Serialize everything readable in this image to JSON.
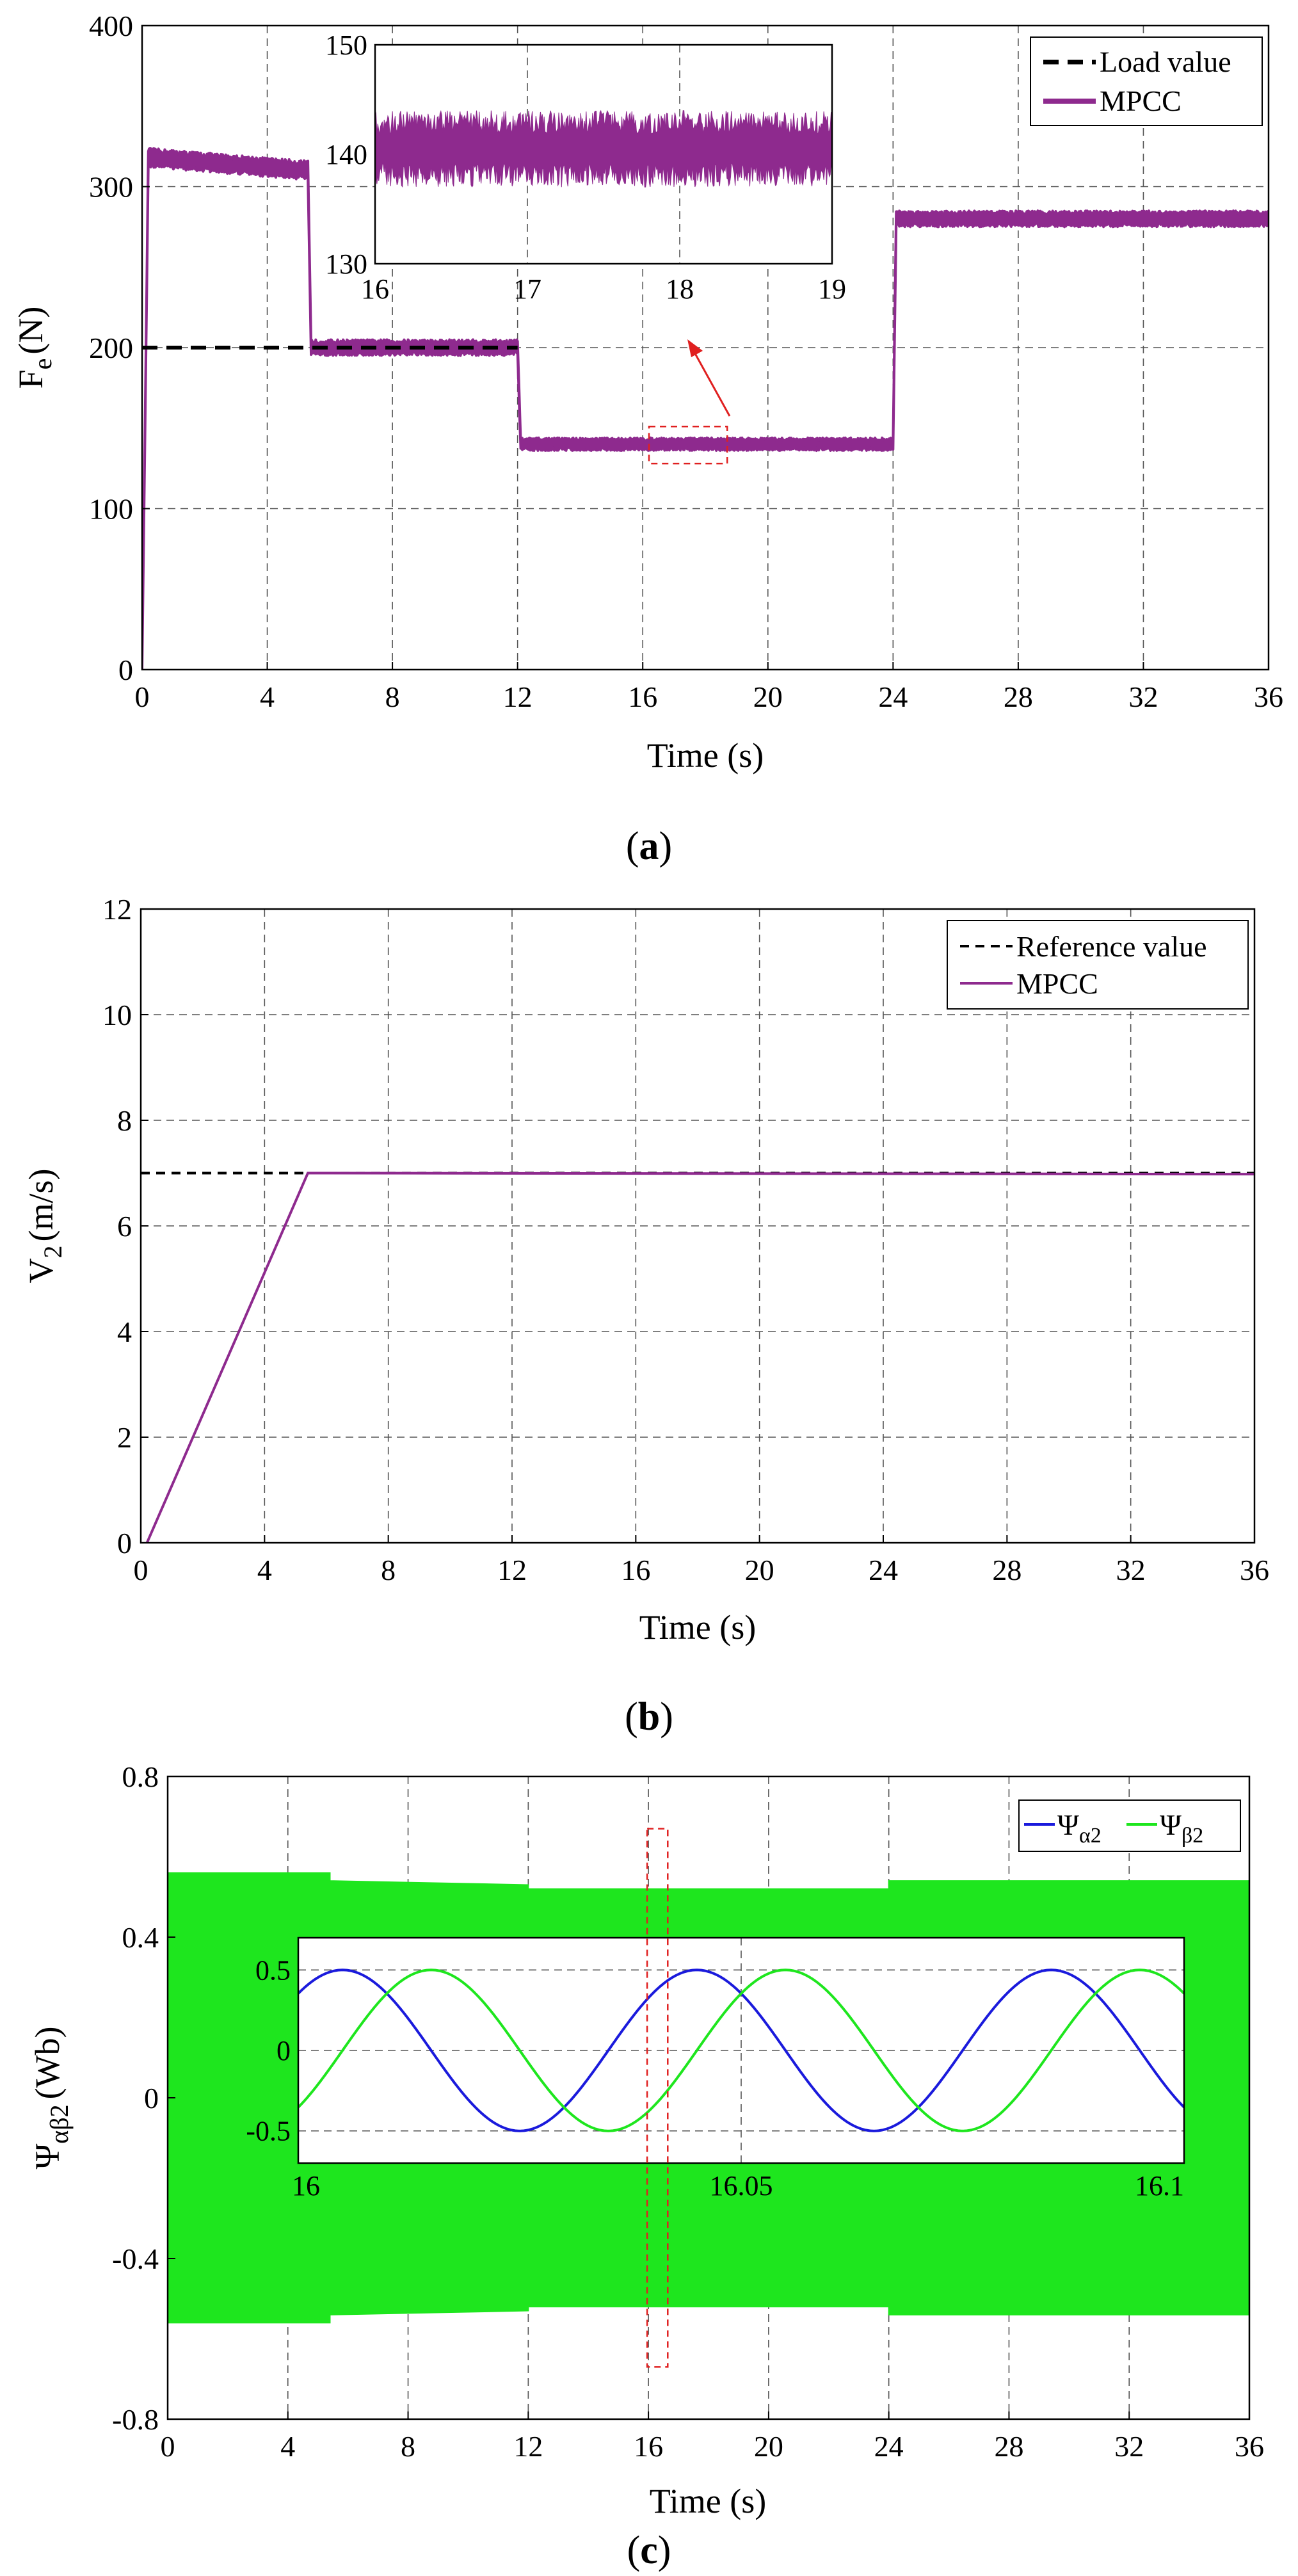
{
  "chart_data": [
    {
      "panel": "a",
      "type": "line",
      "caption": "(a)",
      "xlabel": "Time (s)",
      "ylabel": "F",
      "ylabel_sub": "e",
      "ylabel_unit": "(N)",
      "xlim": [
        0,
        36
      ],
      "ylim": [
        0,
        400
      ],
      "xticks": [
        "0",
        "4",
        "8",
        "12",
        "16",
        "20",
        "24",
        "28",
        "32",
        "36"
      ],
      "yticks": [
        "0",
        "100",
        "200",
        "300",
        "400"
      ],
      "grid": true,
      "legend_position": "top-right",
      "series": [
        {
          "name": "Load value",
          "color": "#000000",
          "style": "dashed",
          "x": [
            0,
            5.4,
            12,
            12,
            24,
            24,
            36
          ],
          "y": [
            200,
            200,
            200,
            140,
            140,
            280,
            280
          ]
        },
        {
          "name": "MPCC",
          "color": "#8e2a8e",
          "style": "solid",
          "x": [
            0,
            0.2,
            5.3,
            5.4,
            12,
            12.1,
            24,
            24.1,
            36
          ],
          "y": [
            0,
            318,
            310,
            200,
            200,
            140,
            140,
            280,
            280
          ],
          "ripple": [
            0,
            6,
            6,
            5,
            5,
            4,
            4,
            5,
            5
          ]
        }
      ],
      "inset": {
        "xlim": [
          16,
          19
        ],
        "ylim": [
          130,
          150
        ],
        "xticks": [
          "16",
          "17",
          "18",
          "19"
        ],
        "yticks": [
          "130",
          "140",
          "150"
        ],
        "level": 140,
        "band": [
          137,
          144
        ]
      },
      "zoom_box": {
        "x": [
          16.2,
          18.7
        ],
        "y": [
          128,
          151
        ]
      }
    },
    {
      "panel": "b",
      "type": "line",
      "caption": "(b)",
      "xlabel": "Time (s)",
      "ylabel": "V",
      "ylabel_sub": "2",
      "ylabel_unit": "(m/s)",
      "xlim": [
        0,
        36
      ],
      "ylim": [
        0,
        12
      ],
      "xticks": [
        "0",
        "4",
        "8",
        "12",
        "16",
        "20",
        "24",
        "28",
        "32",
        "36"
      ],
      "yticks": [
        "0",
        "2",
        "4",
        "6",
        "8",
        "10",
        "12"
      ],
      "grid": true,
      "legend_position": "top-right",
      "series": [
        {
          "name": "Reference value",
          "color": "#000000",
          "style": "dashed",
          "x": [
            0,
            36
          ],
          "y": [
            7,
            7
          ]
        },
        {
          "name": "MPCC",
          "color": "#8e2a8e",
          "style": "solid",
          "x": [
            0.2,
            5.4,
            36
          ],
          "y": [
            0,
            7,
            6.98
          ]
        }
      ]
    },
    {
      "panel": "c",
      "type": "line",
      "caption": "(c)",
      "xlabel": "Time (s)",
      "ylabel": "Ψ",
      "ylabel_sub": "αβ2",
      "ylabel_unit": "(Wb)",
      "xlim": [
        0,
        36
      ],
      "ylim": [
        -0.8,
        0.8
      ],
      "xticks": [
        "0",
        "4",
        "8",
        "12",
        "16",
        "20",
        "24",
        "28",
        "32",
        "36"
      ],
      "yticks": [
        "-0.8",
        "-0.4",
        "0",
        "0.4",
        "0.8"
      ],
      "grid": true,
      "legend_position": "top-right",
      "series": [
        {
          "name": "Ψ",
          "name_sub": "α2",
          "color": "#1a1adc",
          "style": "solid"
        },
        {
          "name": "Ψ",
          "name_sub": "β2",
          "color": "#1ee61e",
          "style": "solid"
        }
      ],
      "envelope": {
        "color": "#1ee61e",
        "x": [
          0,
          5.4,
          5.4,
          12,
          12,
          24,
          24,
          36
        ],
        "amp": [
          0.56,
          0.56,
          0.54,
          0.53,
          0.52,
          0.52,
          0.54,
          0.54
        ]
      },
      "inset": {
        "xlim": [
          16,
          16.1
        ],
        "ylim": [
          -0.7,
          0.7
        ],
        "xticks": [
          "16",
          "16.05",
          "16.1"
        ],
        "yticks": [
          "-0.5",
          "0",
          "0.5"
        ],
        "amplitude": 0.5,
        "period": 0.04,
        "alpha_phase_deg": 45,
        "beta_phase_deg": -45
      },
      "zoom_box": {
        "x": [
          16.0,
          16.6
        ],
        "y": [
          -0.67,
          0.67
        ]
      }
    }
  ]
}
